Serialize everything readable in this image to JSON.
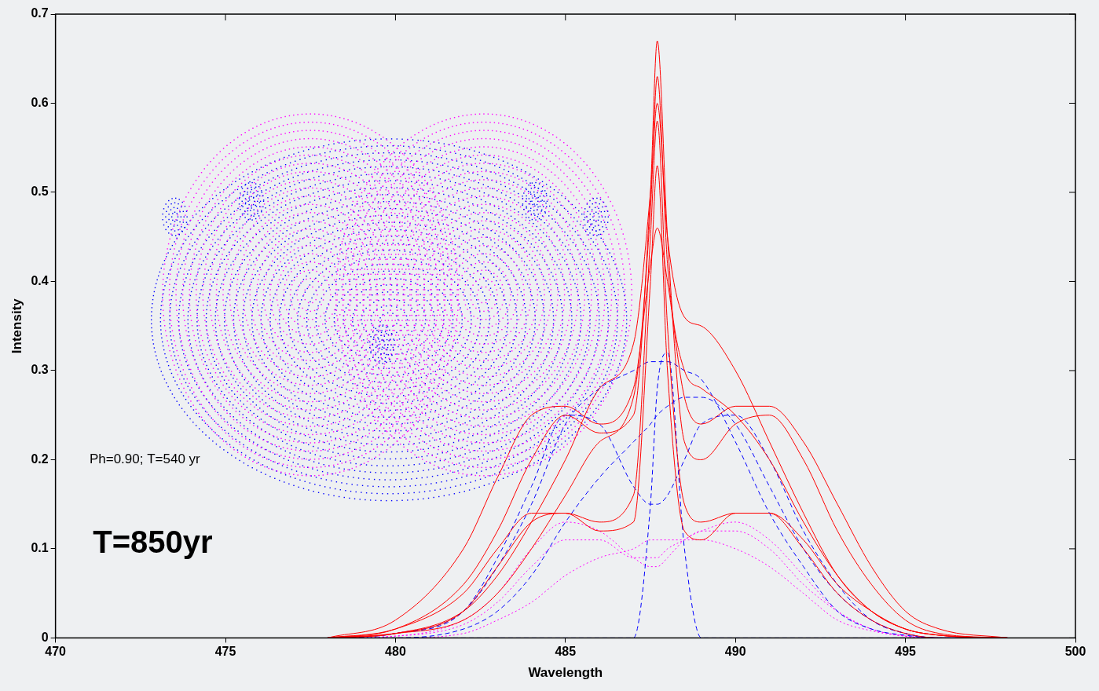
{
  "chart_data": {
    "type": "line",
    "x_label": "Wavelength",
    "y_label": "Intensity",
    "annotations": [
      "Ph=0.90; T=540 yr",
      "T=850yr"
    ],
    "x": [
      478,
      480,
      482,
      483,
      484,
      485,
      486,
      487,
      487.5,
      487.7,
      488,
      488.5,
      489,
      490,
      491,
      492,
      493,
      494,
      495,
      496,
      498
    ],
    "series": [
      {
        "color": "#ff0000",
        "line_style": "solid",
        "values": [
          0,
          0.01,
          0.06,
          0.12,
          0.2,
          0.25,
          0.23,
          0.25,
          0.5,
          0.67,
          0.45,
          0.22,
          0.2,
          0.24,
          0.25,
          0.2,
          0.12,
          0.06,
          0.02,
          0.005,
          0
        ]
      },
      {
        "color": "#ff0000",
        "line_style": "solid",
        "values": [
          0,
          0.005,
          0.03,
          0.07,
          0.13,
          0.2,
          0.28,
          0.33,
          0.5,
          0.6,
          0.45,
          0.36,
          0.35,
          0.3,
          0.22,
          0.14,
          0.07,
          0.03,
          0.01,
          0.003,
          0
        ]
      },
      {
        "color": "#ff0000",
        "line_style": "solid",
        "values": [
          0,
          0.005,
          0.03,
          0.08,
          0.13,
          0.14,
          0.12,
          0.13,
          0.4,
          0.53,
          0.3,
          0.12,
          0.11,
          0.14,
          0.14,
          0.1,
          0.05,
          0.02,
          0.005,
          0,
          0
        ]
      },
      {
        "color": "#ff0000",
        "line_style": "solid",
        "values": [
          0,
          0.02,
          0.1,
          0.18,
          0.25,
          0.26,
          0.24,
          0.28,
          0.42,
          0.46,
          0.4,
          0.27,
          0.24,
          0.26,
          0.26,
          0.22,
          0.15,
          0.08,
          0.03,
          0.01,
          0
        ]
      },
      {
        "color": "#ff0000",
        "line_style": "solid",
        "values": [
          0,
          0.01,
          0.05,
          0.1,
          0.14,
          0.14,
          0.13,
          0.16,
          0.45,
          0.58,
          0.35,
          0.15,
          0.13,
          0.14,
          0.14,
          0.11,
          0.06,
          0.03,
          0.01,
          0.003,
          0
        ]
      },
      {
        "color": "#ff0000",
        "line_style": "solid",
        "values": [
          0,
          0.005,
          0.02,
          0.05,
          0.1,
          0.16,
          0.22,
          0.27,
          0.48,
          0.63,
          0.42,
          0.3,
          0.28,
          0.25,
          0.2,
          0.13,
          0.07,
          0.03,
          0.01,
          0.003,
          0
        ]
      },
      {
        "color": "#0000ff",
        "line_style": "dashed",
        "values": [
          0,
          0,
          0,
          0,
          0,
          0,
          0,
          0,
          0.15,
          0.28,
          0.32,
          0.1,
          0,
          0,
          0,
          0,
          0,
          0,
          0,
          0,
          0
        ]
      },
      {
        "color": "#0000ff",
        "line_style": "dashed",
        "values": [
          0,
          0.005,
          0.03,
          0.08,
          0.15,
          0.24,
          0.28,
          0.3,
          0.31,
          0.31,
          0.31,
          0.3,
          0.29,
          0.22,
          0.14,
          0.08,
          0.03,
          0.01,
          0.003,
          0,
          0
        ]
      },
      {
        "color": "#0000ff",
        "line_style": "dashed",
        "values": [
          0,
          0.005,
          0.03,
          0.09,
          0.17,
          0.25,
          0.24,
          0.17,
          0.15,
          0.15,
          0.16,
          0.2,
          0.24,
          0.25,
          0.2,
          0.12,
          0.06,
          0.02,
          0.005,
          0,
          0
        ]
      },
      {
        "color": "#0000ff",
        "line_style": "dashed",
        "values": [
          0,
          0,
          0.01,
          0.03,
          0.07,
          0.13,
          0.18,
          0.22,
          0.24,
          0.25,
          0.26,
          0.27,
          0.27,
          0.24,
          0.17,
          0.1,
          0.05,
          0.02,
          0.005,
          0,
          0
        ]
      },
      {
        "color": "#ff00ff",
        "line_style": "dotted",
        "values": [
          0,
          0.002,
          0.02,
          0.05,
          0.1,
          0.13,
          0.12,
          0.09,
          0.08,
          0.08,
          0.09,
          0.11,
          0.12,
          0.13,
          0.11,
          0.07,
          0.03,
          0.01,
          0.002,
          0,
          0
        ]
      },
      {
        "color": "#ff00ff",
        "line_style": "dotted",
        "values": [
          0,
          0,
          0.005,
          0.02,
          0.04,
          0.07,
          0.09,
          0.1,
          0.11,
          0.11,
          0.11,
          0.11,
          0.11,
          0.1,
          0.08,
          0.05,
          0.02,
          0.008,
          0.002,
          0,
          0
        ]
      },
      {
        "color": "#ff00ff",
        "line_style": "dotted",
        "values": [
          0,
          0.002,
          0.015,
          0.04,
          0.08,
          0.11,
          0.11,
          0.09,
          0.09,
          0.09,
          0.1,
          0.11,
          0.12,
          0.12,
          0.1,
          0.06,
          0.03,
          0.01,
          0.002,
          0,
          0
        ]
      }
    ],
    "xlim": [
      470,
      500
    ],
    "xticks": [
      470,
      475,
      480,
      485,
      490,
      495,
      500
    ],
    "ylim": [
      0,
      0.7
    ],
    "yticks": [
      0,
      0.1,
      0.2,
      0.3,
      0.4,
      0.5,
      0.6,
      0.7
    ],
    "grid": false
  }
}
